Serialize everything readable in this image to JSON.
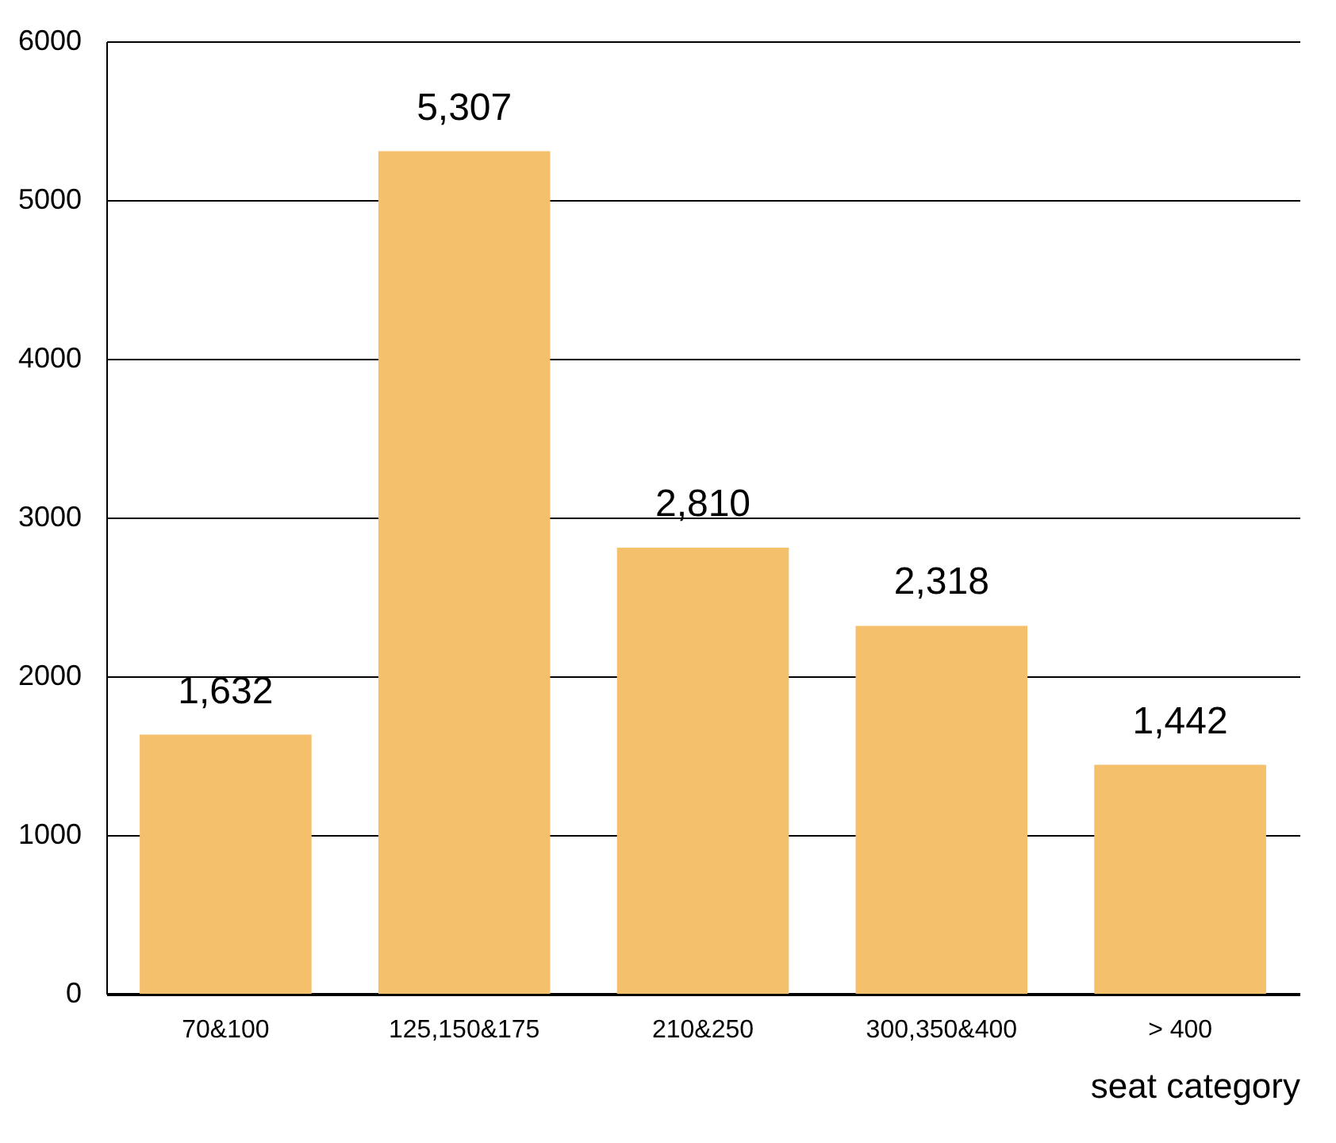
{
  "chart_data": {
    "type": "bar",
    "xlabel": "seat category",
    "categories": [
      "70&100",
      "125,150&175",
      "210&250",
      "300,350&400",
      "> 400"
    ],
    "values": [
      1632,
      5307,
      2810,
      2318,
      1442
    ],
    "value_labels": [
      "1,632",
      "5,307",
      "2,810",
      "2,318",
      "1,442"
    ],
    "color": "#f5c06b",
    "ylim": [
      0,
      6000
    ],
    "yticks": [
      0,
      1000,
      2000,
      3000,
      4000,
      5000,
      6000
    ],
    "grid": "y"
  }
}
